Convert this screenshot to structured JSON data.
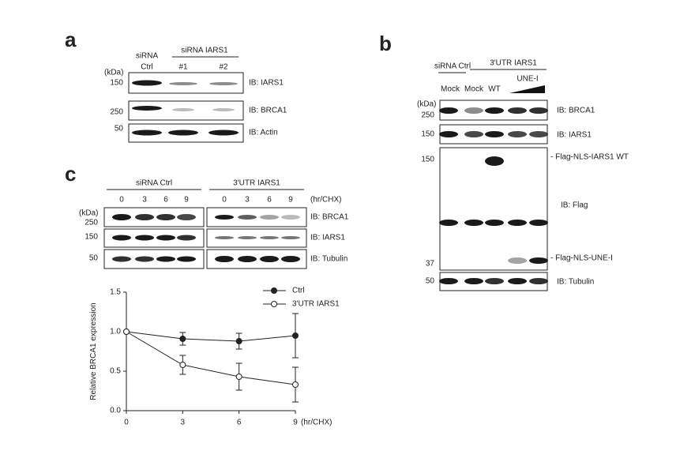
{
  "panel_a": {
    "label": "a",
    "lane_top": "siRNA",
    "lane_ctrl": "Ctrl",
    "group": "siRNA IARS1",
    "lanes": [
      "#1",
      "#2"
    ],
    "kda": "(kDa)",
    "markers": [
      "150",
      "250",
      "50"
    ],
    "blots": [
      "IB: IARS1",
      "IB: BRCA1",
      "IB: Actin"
    ]
  },
  "panel_b": {
    "label": "b",
    "groups": [
      "siRNA Ctrl",
      "3'UTR IARS1"
    ],
    "lanes": [
      "Mock",
      "Mock",
      "WT"
    ],
    "wedge": "UNE-I",
    "kda": "(kDa)",
    "markers": [
      "250",
      "150",
      "150",
      "37",
      "50"
    ],
    "blots": [
      "IB: BRCA1",
      "IB: IARS1",
      "IB: Flag",
      "IB: Tubulin"
    ],
    "annotations": [
      "- Flag-NLS-IARS1 WT",
      "- Flag-NLS-UNE-I"
    ]
  },
  "panel_c": {
    "label": "c",
    "groups": [
      "siRNA Ctrl",
      "3'UTR IARS1"
    ],
    "timepoints": [
      "0",
      "3",
      "6",
      "9"
    ],
    "time_unit": "(hr/CHX)",
    "kda": "(kDa)",
    "markers": [
      "250",
      "150",
      "50"
    ],
    "blots": [
      "IB: BRCA1",
      "IB: IARS1",
      "IB: Tubulin"
    ]
  },
  "chart_data": {
    "type": "line",
    "y_label": "Relative BRCA1 expression",
    "x_unit": "(hr/CHX)",
    "x": [
      0,
      3,
      6,
      9
    ],
    "xlim": [
      0,
      9
    ],
    "xticks": [
      0,
      3,
      6,
      9
    ],
    "ylim": [
      0,
      1.5
    ],
    "yticks": [
      {
        "value": 0,
        "label": "0.0"
      },
      {
        "value": 0.5,
        "label": "0.5"
      },
      {
        "value": 1,
        "label": "1.0"
      },
      {
        "value": 1.5,
        "label": "1.5"
      }
    ],
    "series": [
      {
        "name": "Ctrl",
        "color": "#222222",
        "marker": "filled",
        "values": [
          1.0,
          0.91,
          0.88,
          0.95
        ],
        "errors": [
          0,
          0.08,
          0.1,
          0.28
        ]
      },
      {
        "name": "3'UTR IARS1",
        "color": "#222222",
        "marker": "open",
        "values": [
          1.0,
          0.58,
          0.43,
          0.33
        ],
        "errors": [
          0,
          0.12,
          0.17,
          0.22
        ]
      }
    ]
  }
}
